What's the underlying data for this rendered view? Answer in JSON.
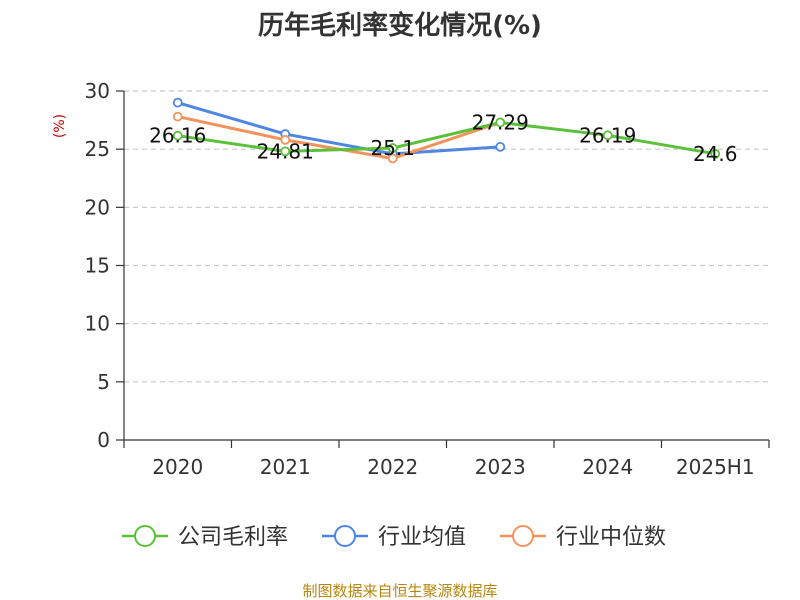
{
  "chart_data": {
    "type": "line",
    "title": "历年毛利率变化情况(%)",
    "ylabel": "(%)",
    "ylim": [
      0,
      30
    ],
    "yticks": [
      0,
      5,
      10,
      15,
      20,
      25,
      30
    ],
    "categories": [
      "2020",
      "2021",
      "2022",
      "2023",
      "2024",
      "2025H1"
    ],
    "grid": true,
    "legend_position": "bottom",
    "series": [
      {
        "name": "公司毛利率",
        "color": "#5cc13a",
        "values": [
          26.16,
          24.81,
          25.1,
          27.29,
          26.19,
          24.6
        ],
        "labels": [
          "26.16",
          "24.81",
          "25.1",
          "27.29",
          "26.19",
          "24.6"
        ]
      },
      {
        "name": "行业均值",
        "color": "#4f86e3",
        "values": [
          29.0,
          26.3,
          24.6,
          25.2,
          null,
          null
        ]
      },
      {
        "name": "行业中位数",
        "color": "#f3935c",
        "values": [
          27.8,
          25.8,
          24.2,
          27.3,
          null,
          null
        ]
      }
    ]
  },
  "footer": {
    "source": "制图数据来自恒生聚源数据库"
  }
}
